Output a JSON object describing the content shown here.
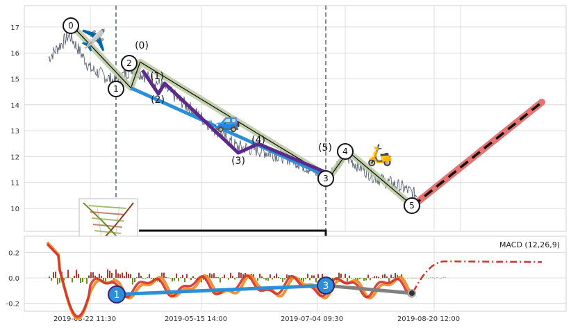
{
  "chart_data": [
    {
      "type": "line",
      "panel": "price",
      "y_ticks": [
        "10",
        "11",
        "12",
        "13",
        "14",
        "15",
        "16",
        "17"
      ],
      "ylim": [
        9,
        17.8
      ],
      "grid": true,
      "x_ticks": [
        "2019-03-22 11:30",
        "2019-05-15 14:00",
        "2019-07-04 09:30",
        "2019-08-20 12:00"
      ],
      "wave_major": [
        {
          "label": "0",
          "x": 0.0,
          "y": 17.1
        },
        {
          "label": "1",
          "x": 0.13,
          "y": 14.65
        },
        {
          "label": "2",
          "x": 0.15,
          "y": 15.65
        },
        {
          "label": "3",
          "x": 0.56,
          "y": 11.2
        },
        {
          "label": "4",
          "x": 0.6,
          "y": 12.2
        },
        {
          "label": "5",
          "x": 0.74,
          "y": 10.1
        }
      ],
      "wave_minor": [
        {
          "label": "(0)",
          "x": 0.19,
          "y": 16.2
        },
        {
          "label": "(1)",
          "x": 0.23,
          "y": 13.9
        },
        {
          "label": "(2)",
          "x": 0.25,
          "y": 14.95
        },
        {
          "label": "(3)",
          "x": 0.36,
          "y": 12.0
        },
        {
          "label": "(4)",
          "x": 0.4,
          "y": 12.4
        },
        {
          "label": "(5)",
          "x": 0.55,
          "y": 12.4
        }
      ],
      "emoji_markers": [
        {
          "name": "airplane",
          "glyph": "✈️",
          "x": 0.03,
          "y": 16.6
        },
        {
          "name": "car",
          "glyph": "🚙",
          "x": 0.36,
          "y": 13.4
        },
        {
          "name": "scooter",
          "glyph": "🛵",
          "x": 0.68,
          "y": 11.9
        }
      ],
      "projection": {
        "from_y": 10.3,
        "to_y": 14.1
      },
      "colors": {
        "price": "#4a5568",
        "wave": "#b8c9a0",
        "trend_blue": "#2a8fd6",
        "purple": "#5b2a8a",
        "projection_fill": "#e57373",
        "vline": "#4a6278"
      }
    },
    {
      "type": "bar",
      "panel": "macd",
      "label": "MACD (12,26,9)",
      "y_ticks": [
        "0.2",
        "0.0",
        "-0.2"
      ],
      "ylim": [
        -0.25,
        0.3
      ],
      "points": [
        {
          "label": "1",
          "y": -0.13
        },
        {
          "label": "3",
          "y": -0.06
        },
        {
          "label": "",
          "y": -0.12
        }
      ],
      "colors": {
        "macd": "#e85a1e",
        "signal": "#d0332a",
        "trend_blue": "#2a8fd6",
        "trend_grey": "#808080",
        "hist_pos": "#b5342c",
        "hist_neg": "#6b8e23"
      }
    }
  ]
}
